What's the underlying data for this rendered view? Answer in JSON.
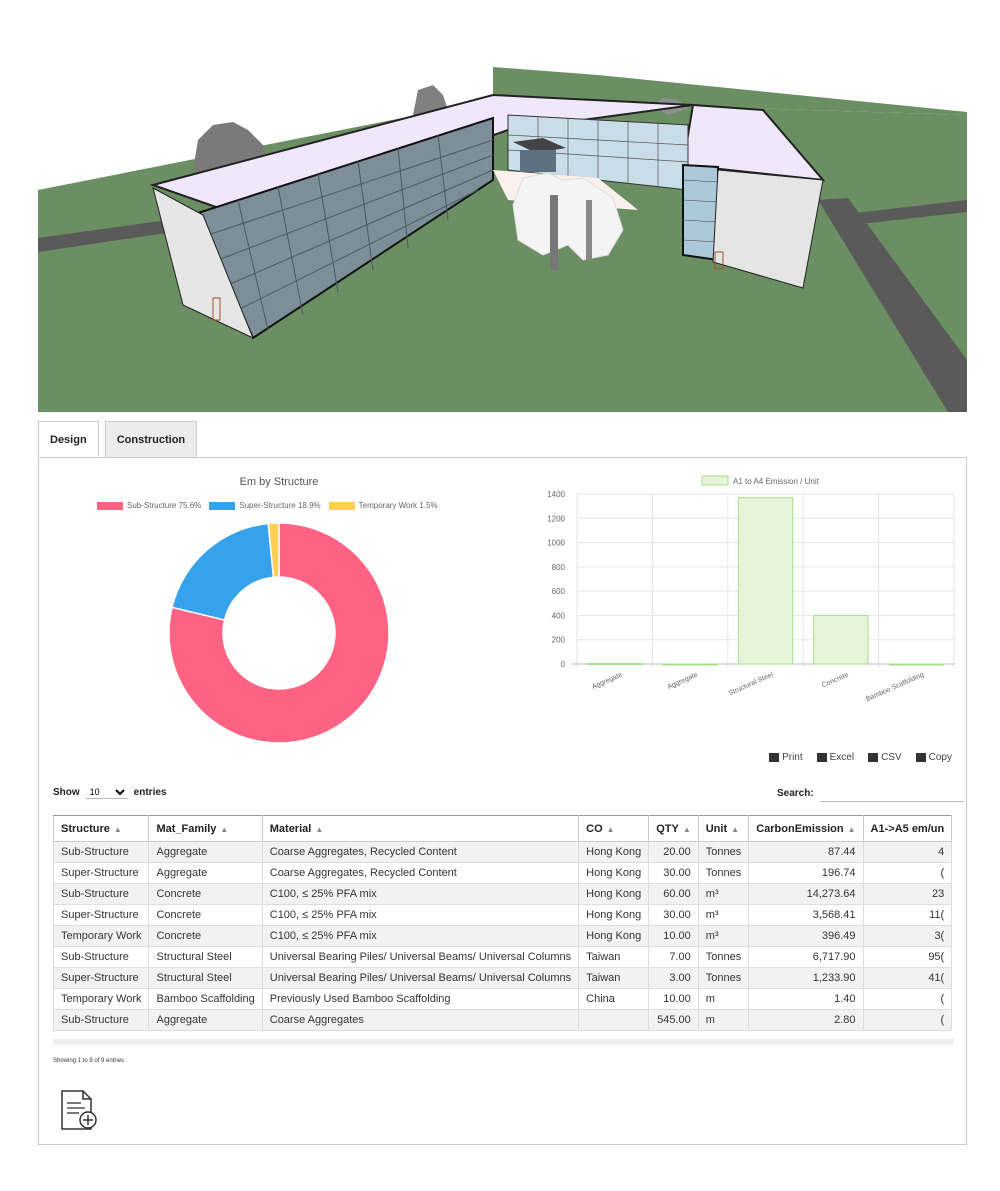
{
  "tabs": [
    {
      "label": "Design",
      "active": true
    },
    {
      "label": "Construction",
      "active": false
    }
  ],
  "donut_chart": {
    "title": "Em by Structure",
    "legend": [
      "Sub-Structure 75.6%",
      "Super-Structure 18.9%",
      "Temporary Work 1.5%"
    ]
  },
  "chart_data": [
    {
      "type": "pie",
      "title": "Em by Structure",
      "labels": [
        "Sub-Structure",
        "Super-Structure",
        "Temporary Work"
      ],
      "values": [
        75.6,
        18.9,
        1.5
      ],
      "colors": [
        "#ff6384",
        "#36a2eb",
        "#ffce56"
      ],
      "legend_position": "top"
    },
    {
      "type": "bar",
      "categories": [
        "Aggregate",
        "Aggregate",
        "Structural Steel",
        "Concrete",
        "Bamboo Scaffolding"
      ],
      "series": [
        {
          "name": "A1 to A4 Emission / Unit",
          "values": [
            4,
            0,
            1370,
            400,
            0
          ]
        }
      ],
      "yticks": [
        "0",
        "200",
        "400",
        "600",
        "800",
        "1000",
        "1200",
        "1400"
      ],
      "ylim": [
        0,
        1400
      ],
      "bar_fill": "#e6f5d9",
      "bar_stroke": "#a6df8a",
      "legend_position": "top"
    }
  ],
  "export_buttons": {
    "print": "Print",
    "excel": "Excel",
    "csv": "CSV",
    "copy": "Copy"
  },
  "show": {
    "prefix": "Show",
    "value": "10",
    "suffix": "entries"
  },
  "search": {
    "label": "Search:"
  },
  "table": {
    "headers": [
      "Structure",
      "Mat_Family",
      "Material",
      "CO",
      "QTY",
      "Unit",
      "CarbonEmission",
      "A1->A5 em/un"
    ],
    "rows": [
      [
        "Sub-Structure",
        "Aggregate",
        "Coarse Aggregates, Recycled Content",
        "Hong Kong",
        "20.00",
        "Tonnes",
        "87.44",
        "4"
      ],
      [
        "Super-Structure",
        "Aggregate",
        "Coarse Aggregates, Recycled Content",
        "Hong Kong",
        "30.00",
        "Tonnes",
        "196.74",
        "("
      ],
      [
        "Sub-Structure",
        "Concrete",
        "C100, ≤ 25% PFA mix",
        "Hong Kong",
        "60.00",
        "m³",
        "14,273.64",
        "23"
      ],
      [
        "Super-Structure",
        "Concrete",
        "C100, ≤ 25% PFA mix",
        "Hong Kong",
        "30.00",
        "m³",
        "3,568.41",
        "11("
      ],
      [
        "Temporary Work",
        "Concrete",
        "C100, ≤ 25% PFA mix",
        "Hong Kong",
        "10.00",
        "m³",
        "396.49",
        "3("
      ],
      [
        "Sub-Structure",
        "Structural Steel",
        "Universal Bearing Piles/ Universal Beams/ Universal Columns",
        "Taiwan",
        "7.00",
        "Tonnes",
        "6,717.90",
        "95("
      ],
      [
        "Super-Structure",
        "Structural Steel",
        "Universal Bearing Piles/ Universal Beams/ Universal Columns",
        "Taiwan",
        "3.00",
        "Tonnes",
        "1,233.90",
        "41("
      ],
      [
        "Temporary Work",
        "Bamboo Scaffolding",
        "Previously Used Bamboo Scaffolding",
        "China",
        "10.00",
        "m",
        "1.40",
        "("
      ],
      [
        "Sub-Structure",
        "Aggregate",
        "Coarse Aggregates",
        "",
        "545.00",
        "m",
        "2.80",
        "("
      ]
    ]
  },
  "info": "Showing 1 to 9 of 9 entries"
}
